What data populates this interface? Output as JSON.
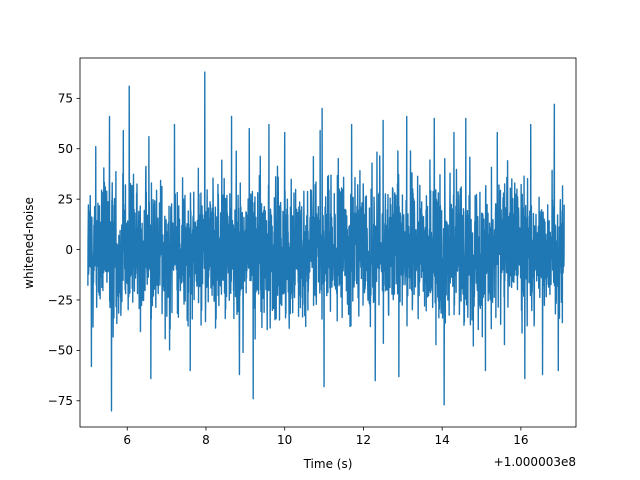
{
  "chart_data": {
    "type": "line",
    "xlabel": "Time (s)",
    "ylabel": "whitened-noise",
    "x_offset_label": "+1.000003e8",
    "xlim": [
      4.8,
      17.4
    ],
    "ylim": [
      -88,
      95
    ],
    "xticks": [
      6,
      8,
      10,
      12,
      14,
      16
    ],
    "yticks": [
      -75,
      -50,
      -25,
      0,
      25,
      50,
      75
    ],
    "grid": false,
    "series": [
      {
        "color": "#1f77b4",
        "x_range": [
          5.0,
          17.1
        ],
        "typical_envelope": [
          -52,
          50
        ],
        "extremes": [
          {
            "x": 5.09,
            "y": -58
          },
          {
            "x": 5.2,
            "y": 51
          },
          {
            "x": 5.55,
            "y": 66
          },
          {
            "x": 5.6,
            "y": -80
          },
          {
            "x": 5.9,
            "y": 59
          },
          {
            "x": 6.05,
            "y": 81
          },
          {
            "x": 6.55,
            "y": 56
          },
          {
            "x": 6.6,
            "y": -64
          },
          {
            "x": 7.2,
            "y": 62
          },
          {
            "x": 7.6,
            "y": -60
          },
          {
            "x": 7.97,
            "y": 88
          },
          {
            "x": 8.65,
            "y": 66
          },
          {
            "x": 8.85,
            "y": -62
          },
          {
            "x": 9.1,
            "y": 60
          },
          {
            "x": 9.2,
            "y": -74
          },
          {
            "x": 9.6,
            "y": 62
          },
          {
            "x": 10.0,
            "y": 58
          },
          {
            "x": 10.9,
            "y": 59
          },
          {
            "x": 10.95,
            "y": 70
          },
          {
            "x": 11.0,
            "y": -68
          },
          {
            "x": 11.7,
            "y": 62
          },
          {
            "x": 12.3,
            "y": -65
          },
          {
            "x": 12.5,
            "y": 64
          },
          {
            "x": 12.9,
            "y": -63
          },
          {
            "x": 13.1,
            "y": 66
          },
          {
            "x": 13.8,
            "y": 65
          },
          {
            "x": 14.05,
            "y": -77
          },
          {
            "x": 14.3,
            "y": 58
          },
          {
            "x": 14.6,
            "y": 65
          },
          {
            "x": 15.1,
            "y": -60
          },
          {
            "x": 15.4,
            "y": 58
          },
          {
            "x": 16.1,
            "y": -64
          },
          {
            "x": 16.25,
            "y": 62
          },
          {
            "x": 16.55,
            "y": -62
          },
          {
            "x": 16.85,
            "y": 72
          },
          {
            "x": 16.95,
            "y": -60
          }
        ]
      }
    ]
  }
}
